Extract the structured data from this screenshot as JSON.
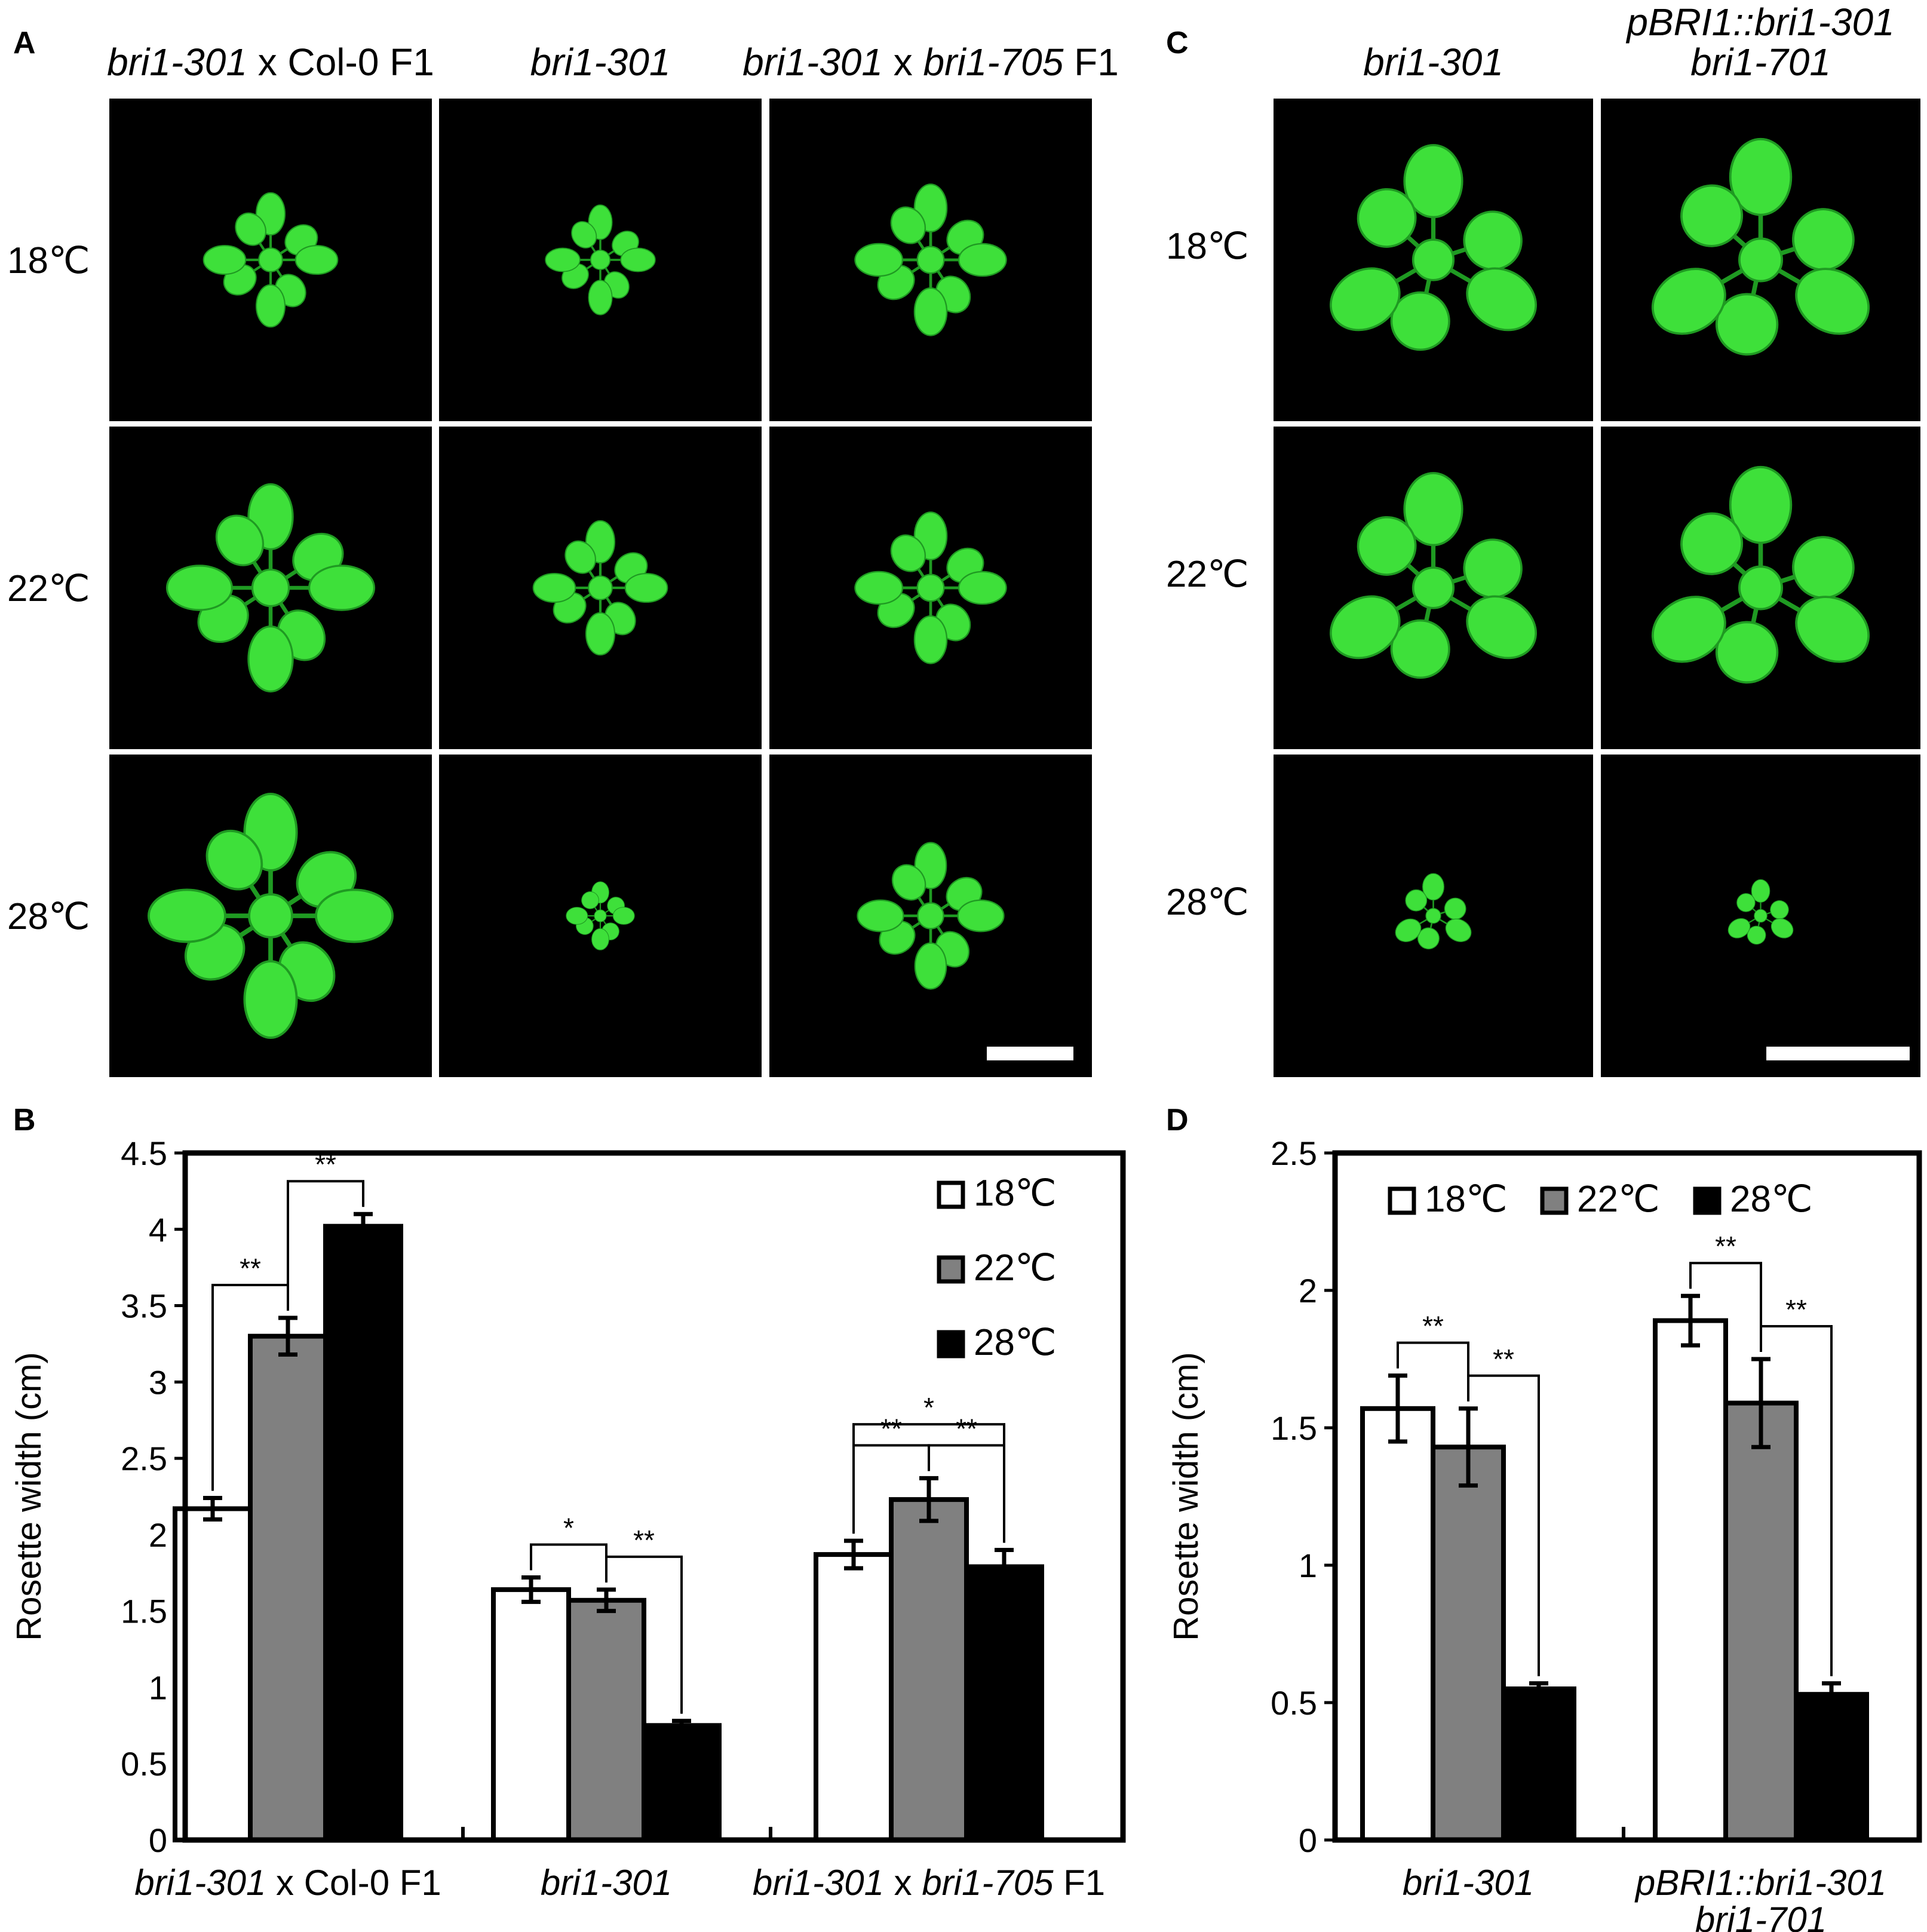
{
  "panels": {
    "A": {
      "letter": "A",
      "columns": [
        {
          "parts": [
            {
              "t": "bri1-301",
              "i": true
            },
            {
              "t": " x Col-0 F1",
              "i": false
            }
          ]
        },
        {
          "parts": [
            {
              "t": "bri1-301",
              "i": true
            }
          ]
        },
        {
          "parts": [
            {
              "t": "bri1-301",
              "i": true
            },
            {
              "t": " x ",
              "i": false
            },
            {
              "t": "bri1-705",
              "i": true
            },
            {
              "t": " F1",
              "i": false
            }
          ]
        }
      ],
      "rows": [
        "18℃",
        "22℃",
        "28℃"
      ],
      "plant_sizes": [
        [
          0.55,
          0.45,
          0.62
        ],
        [
          0.85,
          0.55,
          0.62
        ],
        [
          1.0,
          0.28,
          0.6
        ]
      ]
    },
    "B": {
      "letter": "B"
    },
    "C": {
      "letter": "C",
      "columns": [
        {
          "lines": [
            [
              {
                "t": "bri1-301",
                "i": true
              }
            ]
          ]
        },
        {
          "lines": [
            [
              {
                "t": "pBRI1::bri1-301",
                "i": true
              }
            ],
            [
              {
                "t": "bri1-701",
                "i": true
              }
            ]
          ]
        }
      ],
      "rows": [
        "18℃",
        "22℃",
        "28℃"
      ],
      "plant_sizes": [
        [
          0.95,
          1.0
        ],
        [
          0.95,
          1.0
        ],
        [
          0.35,
          0.3
        ]
      ]
    },
    "D": {
      "letter": "D"
    }
  },
  "colors": {
    "plant": "#3ee03a",
    "plant_dark": "#1f9a22",
    "photo_bg": "#000000",
    "bar_18": "#ffffff",
    "bar_22": "#808080",
    "bar_28": "#000000"
  },
  "chart_data": [
    {
      "panel": "B",
      "type": "bar",
      "ylabel": "Rosette width (cm)",
      "ylim": [
        0,
        4.5
      ],
      "yticks": [
        "0",
        "0.5",
        "1",
        "1.5",
        "2",
        "2.5",
        "3",
        "3.5",
        "4",
        "4.5"
      ],
      "groups": [
        [
          {
            "t": "bri1-301",
            "i": true
          },
          {
            "t": " x Col-0 F1",
            "i": false
          }
        ],
        [
          {
            "t": "bri1-301",
            "i": true
          }
        ],
        [
          {
            "t": "bri1-301",
            "i": true
          },
          {
            "t": " x ",
            "i": false
          },
          {
            "t": "bri1-705",
            "i": true
          },
          {
            "t": " F1",
            "i": false
          }
        ]
      ],
      "legend_position": "top-right",
      "series": [
        {
          "name": "18℃",
          "values": [
            2.17,
            1.64,
            1.87
          ],
          "errors": [
            0.07,
            0.08,
            0.09
          ]
        },
        {
          "name": "22℃",
          "values": [
            3.3,
            1.57,
            2.23
          ],
          "errors": [
            0.12,
            0.07,
            0.14
          ]
        },
        {
          "name": "28℃",
          "values": [
            4.02,
            0.75,
            1.79
          ],
          "errors": [
            0.08,
            0.03,
            0.11
          ]
        }
      ],
      "significance": [
        {
          "group": 0,
          "from": 0,
          "to": 1,
          "label": "**"
        },
        {
          "group": 0,
          "from": 1,
          "to": 2,
          "label": "**"
        },
        {
          "group": 1,
          "from": 0,
          "to": 1,
          "label": "*"
        },
        {
          "group": 1,
          "from": 1,
          "to": 2,
          "label": "**"
        },
        {
          "group": 2,
          "from": 0,
          "to": 1,
          "label": "**"
        },
        {
          "group": 2,
          "from": 1,
          "to": 2,
          "label": "**"
        },
        {
          "group": 2,
          "from": 0,
          "to": 2,
          "label": "*"
        }
      ]
    },
    {
      "panel": "D",
      "type": "bar",
      "ylabel": "Rosette width (cm)",
      "ylim": [
        0,
        2.5
      ],
      "yticks": [
        "0",
        "0.5",
        "1",
        "1.5",
        "2",
        "2.5"
      ],
      "groups": [
        [
          [
            {
              "t": "bri1-301",
              "i": true
            }
          ]
        ],
        [
          [
            {
              "t": "pBRI1::bri1-301",
              "i": true
            }
          ],
          [
            {
              "t": "bri1-701",
              "i": true
            }
          ]
        ]
      ],
      "legend_position": "top",
      "series": [
        {
          "name": "18℃",
          "values": [
            1.57,
            1.89
          ],
          "errors": [
            0.12,
            0.09
          ]
        },
        {
          "name": "22℃",
          "values": [
            1.43,
            1.59
          ],
          "errors": [
            0.14,
            0.16
          ]
        },
        {
          "name": "28℃",
          "values": [
            0.55,
            0.53
          ],
          "errors": [
            0.02,
            0.04
          ]
        }
      ],
      "significance": [
        {
          "group": 0,
          "from": 0,
          "to": 1,
          "label": "**"
        },
        {
          "group": 0,
          "from": 1,
          "to": 2,
          "label": "**"
        },
        {
          "group": 1,
          "from": 0,
          "to": 1,
          "label": "**"
        },
        {
          "group": 1,
          "from": 1,
          "to": 2,
          "label": "**"
        }
      ]
    }
  ]
}
